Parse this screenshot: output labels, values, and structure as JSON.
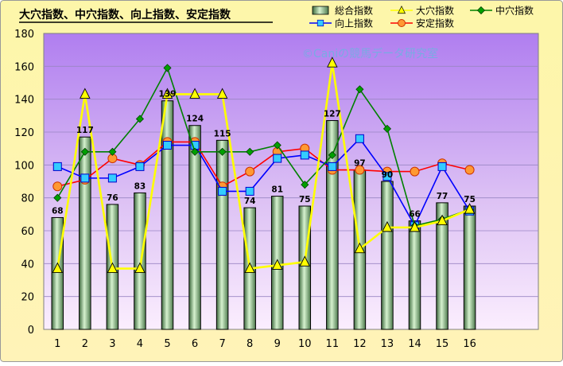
{
  "chart_data": {
    "type": "bar",
    "title": "大穴指数、中穴指数、向上指数、安定指数",
    "watermark": "©Caniの競馬データ研究室",
    "categories": [
      "1",
      "2",
      "3",
      "4",
      "5",
      "6",
      "7",
      "8",
      "9",
      "10",
      "11",
      "12",
      "13",
      "14",
      "15",
      "16"
    ],
    "ylim": [
      0,
      180
    ],
    "yticks": [
      0,
      20,
      40,
      60,
      80,
      100,
      120,
      140,
      160,
      180
    ],
    "grid": true,
    "legend_position": "top-right",
    "series": [
      {
        "name": "総合指数",
        "type": "bar",
        "color": "#b9e6b0",
        "values": [
          68,
          117,
          76,
          83,
          139,
          124,
          115,
          74,
          81,
          75,
          127,
          97,
          90,
          66,
          77,
          75
        ]
      },
      {
        "name": "大穴指数",
        "type": "line",
        "color": "#ffff00",
        "marker": "triangle",
        "values": [
          37,
          143,
          37,
          37,
          143,
          143,
          143,
          37,
          39,
          41,
          162,
          49,
          62,
          62,
          66,
          73
        ]
      },
      {
        "name": "中穴指数",
        "type": "line",
        "color": "#008000",
        "marker": "diamond",
        "values": [
          80,
          108,
          108,
          128,
          159,
          108,
          108,
          108,
          112,
          88,
          106,
          146,
          122,
          63,
          67,
          73
        ]
      },
      {
        "name": "向上指数",
        "type": "line",
        "color": "#0000ff",
        "marker": "square",
        "values": [
          99,
          92,
          92,
          99,
          112,
          112,
          84,
          84,
          104,
          106,
          99,
          116,
          93,
          63,
          99,
          72
        ]
      },
      {
        "name": "安定指数",
        "type": "line",
        "color": "#ff0000",
        "marker": "circle",
        "values": [
          87,
          91,
          104,
          100,
          114,
          114,
          87,
          96,
          108,
          110,
          97,
          97,
          96,
          96,
          101,
          97
        ]
      }
    ]
  }
}
